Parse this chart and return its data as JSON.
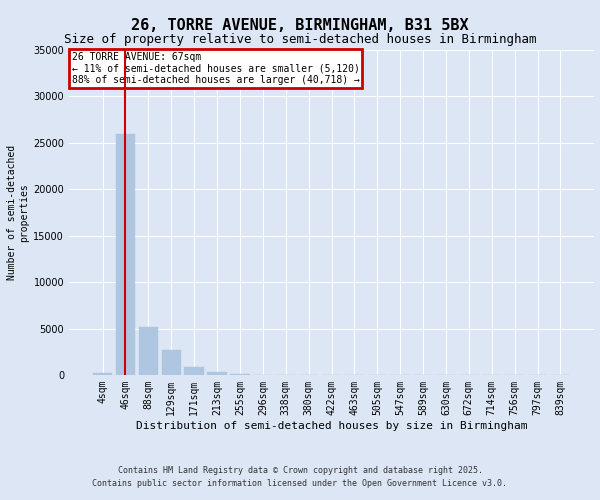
{
  "title": "26, TORRE AVENUE, BIRMINGHAM, B31 5BX",
  "subtitle": "Size of property relative to semi-detached houses in Birmingham",
  "xlabel": "Distribution of semi-detached houses by size in Birmingham",
  "ylabel": "Number of semi-detached\nproperties",
  "footer_line1": "Contains HM Land Registry data © Crown copyright and database right 2025.",
  "footer_line2": "Contains public sector information licensed under the Open Government Licence v3.0.",
  "categories": [
    "4sqm",
    "46sqm",
    "88sqm",
    "129sqm",
    "171sqm",
    "213sqm",
    "255sqm",
    "296sqm",
    "338sqm",
    "380sqm",
    "422sqm",
    "463sqm",
    "505sqm",
    "547sqm",
    "589sqm",
    "630sqm",
    "672sqm",
    "714sqm",
    "756sqm",
    "797sqm",
    "839sqm"
  ],
  "values": [
    200,
    26000,
    5200,
    2700,
    900,
    300,
    100,
    30,
    10,
    5,
    3,
    2,
    1,
    1,
    0,
    0,
    0,
    0,
    0,
    0,
    0
  ],
  "bar_color": "#aec6df",
  "property_line_index": 1,
  "annotation_title": "26 TORRE AVENUE: 67sqm",
  "annotation_line1": "← 11% of semi-detached houses are smaller (5,120)",
  "annotation_line2": "88% of semi-detached houses are larger (40,718) →",
  "annotation_box_edgecolor": "#cc0000",
  "ylim": [
    0,
    35000
  ],
  "yticks": [
    0,
    5000,
    10000,
    15000,
    20000,
    25000,
    30000,
    35000
  ],
  "bg_color": "#dce6f5",
  "plot_bg_color": "#dce6f5",
  "grid_color": "#ffffff",
  "title_fontsize": 11,
  "subtitle_fontsize": 9,
  "tick_fontsize": 7,
  "ylabel_fontsize": 7,
  "xlabel_fontsize": 8
}
